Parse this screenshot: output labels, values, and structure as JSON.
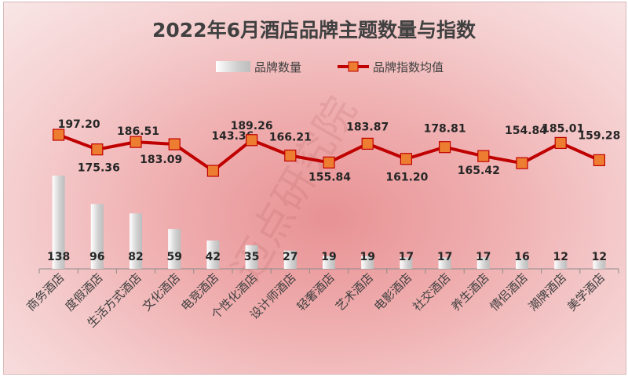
{
  "chart_data": {
    "type": "bar+line",
    "title": "2022年6月酒店品牌主题数量与指数",
    "watermark": "迈点研究院",
    "categories": [
      "商务酒店",
      "度假酒店",
      "生活方式酒店",
      "文化酒店",
      "电竞酒店",
      "个性化酒店",
      "设计师酒店",
      "轻奢酒店",
      "艺术酒店",
      "电影酒店",
      "社交酒店",
      "养生酒店",
      "情侣酒店",
      "潮牌酒店",
      "美学酒店"
    ],
    "series": [
      {
        "name": "品牌数量",
        "type": "bar",
        "color": "#d9d9d9",
        "values": [
          138,
          96,
          82,
          59,
          42,
          35,
          27,
          19,
          19,
          17,
          17,
          17,
          16,
          12,
          12
        ]
      },
      {
        "name": "品牌指数均值",
        "type": "line",
        "color": "#c00000",
        "marker_color": "#ed7d31",
        "values": [
          "197.20",
          "175.36",
          "186.51",
          "183.09",
          "143.36",
          "189.26",
          "166.21",
          "155.84",
          "183.87",
          "161.20",
          "178.81",
          "165.42",
          "154.84",
          "185.01",
          "159.28"
        ]
      }
    ],
    "legend_position": "top",
    "grid": false
  }
}
